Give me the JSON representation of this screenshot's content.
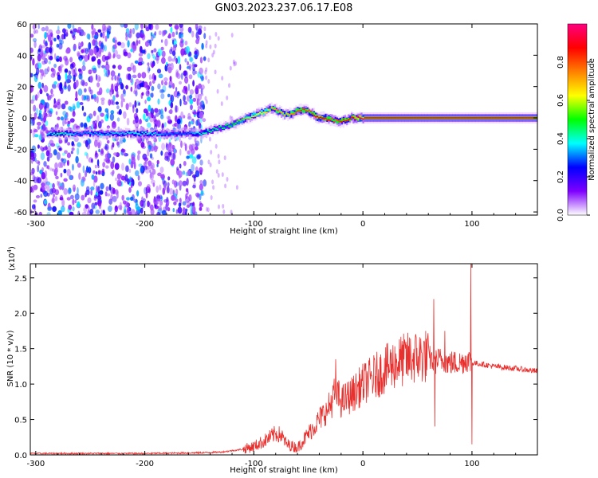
{
  "title": "GN03.2023.237.06.17.E08",
  "chart_data": [
    {
      "type": "heatmap",
      "xlabel": "Height of straight line (km)",
      "ylabel": "Frequency (Hz)",
      "xlim": [
        -305,
        160
      ],
      "ylim": [
        -62,
        60
      ],
      "xticks": [
        -300,
        -200,
        -100,
        0,
        100
      ],
      "yticks": [
        60,
        40,
        20,
        0,
        -20,
        -40,
        -60
      ],
      "colorbar": {
        "label": "Normalized spectral amplitude",
        "range": [
          0,
          1
        ],
        "ticks": [
          "0.0",
          "0.2",
          "0.4",
          "0.6",
          "0.8"
        ],
        "colors": [
          "#ffffff",
          "#7f00ff",
          "#0000ff",
          "#00ffff",
          "#00ff00",
          "#ffff00",
          "#ff8000",
          "#ff0000",
          "#ff0080"
        ]
      },
      "ridge": {
        "x": [
          -290,
          -280,
          -260,
          -240,
          -220,
          -200,
          -180,
          -160,
          -150,
          -140,
          -130,
          -120,
          -110,
          -100,
          -90,
          -85,
          -80,
          -75,
          -70,
          -65,
          -60,
          -55,
          -50,
          -45,
          -42,
          -38,
          -35,
          -30,
          -25,
          -20,
          -15,
          -10,
          -5,
          0,
          20,
          40,
          60,
          80,
          100,
          120,
          140,
          160
        ],
        "y": [
          -10,
          -10,
          -10,
          -10,
          -10,
          -10,
          -10,
          -10,
          -10,
          -8,
          -6,
          -4,
          -1,
          2,
          4,
          6,
          5,
          3,
          2,
          3,
          5,
          5,
          4,
          2,
          0,
          0,
          0,
          -1,
          -2,
          -2,
          -1,
          0,
          0,
          0,
          0,
          0,
          0,
          0,
          0,
          0,
          0,
          0
        ],
        "amplitude": [
          0.35,
          0.45,
          0.3,
          0.35,
          0.35,
          0.4,
          0.3,
          0.3,
          0.4,
          0.45,
          0.45,
          0.5,
          0.55,
          0.6,
          0.65,
          0.7,
          0.75,
          0.7,
          0.7,
          0.75,
          0.8,
          0.8,
          0.8,
          0.85,
          0.9,
          0.9,
          0.85,
          0.8,
          0.8,
          0.85,
          0.85,
          0.9,
          0.95,
          0.95,
          0.95,
          0.95,
          0.95,
          0.95,
          0.95,
          0.95,
          0.95,
          0.95
        ]
      },
      "noise_region_x": [
        -305,
        -145
      ]
    },
    {
      "type": "line",
      "xlabel": "Height of straight line (km)",
      "ylabel": "SNR (10 * v/v)",
      "yscale_label": "(x10",
      "yscale_exp": "4",
      "xlim": [
        -305,
        160
      ],
      "ylim": [
        0,
        2.7
      ],
      "xticks": [
        -300,
        -200,
        -100,
        0,
        100
      ],
      "yticks": [
        "0.0",
        "0.5",
        "1.0",
        "1.5",
        "2.0",
        "2.5"
      ],
      "ytick_values": [
        0,
        0.5,
        1.0,
        1.5,
        2.0,
        2.5
      ],
      "color": "#e8302e",
      "x": [
        -305,
        -250,
        -200,
        -150,
        -130,
        -110,
        -100,
        -90,
        -80,
        -75,
        -70,
        -60,
        -50,
        -40,
        -35,
        -30,
        -25,
        -20,
        -10,
        0,
        10,
        20,
        30,
        40,
        50,
        60,
        65,
        70,
        75,
        80,
        90,
        95,
        100,
        110,
        120,
        140,
        160
      ],
      "y": [
        0.02,
        0.02,
        0.02,
        0.03,
        0.04,
        0.08,
        0.12,
        0.2,
        0.3,
        0.28,
        0.15,
        0.1,
        0.3,
        0.5,
        0.6,
        0.7,
        0.9,
        0.75,
        0.85,
        1.0,
        1.1,
        1.2,
        1.3,
        1.35,
        1.38,
        1.4,
        1.3,
        1.35,
        1.32,
        1.3,
        1.3,
        1.35,
        1.3,
        1.28,
        1.25,
        1.22,
        1.18
      ],
      "spikes": [
        {
          "x": -25,
          "y": 1.35
        },
        {
          "x": -33,
          "y": 0.55
        },
        {
          "x": 65,
          "y": 2.2
        },
        {
          "x": 66,
          "y": 0.4
        },
        {
          "x": 75,
          "y": 1.75
        },
        {
          "x": 99,
          "y": 2.7
        },
        {
          "x": 100,
          "y": 0.15
        }
      ]
    }
  ]
}
